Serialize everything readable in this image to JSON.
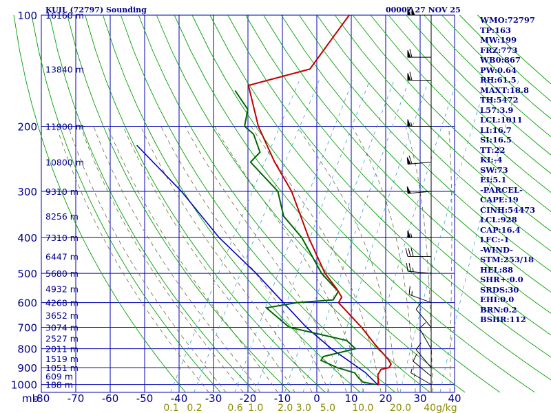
{
  "header": {
    "station": "KUIL (72797) Sounding",
    "time": "0000Z 27 NOV 25"
  },
  "indices": [
    "WMO:72797",
    "TP:163",
    "MW:199",
    "FRZ:773",
    "WB0:867",
    "PW:0.64",
    "RH:61.5",
    "MAXT:18.8",
    "TH:5472",
    "L57:3.9",
    "LCL:1011",
    "LI:16.7",
    "SI:16.5",
    "TT:22",
    "KI:-4",
    "SW:73",
    "EI:5.1",
    "-PARCEL-",
    "CAPE:19",
    "CINH:54473",
    "LCL:928",
    "CAP:16.4",
    "LFC:-1",
    "-WIND-",
    "STM:253/18",
    "HEL:88",
    "SHR+:0.0",
    "SRDS:30",
    "EHI:0.0",
    "BRN:0.2",
    "BSHR:112"
  ],
  "colors": {
    "grid": "#0000b0",
    "dry_adiabat": "#00a000",
    "moist_adiabat": "#6b6b3a",
    "mixing_ratio": "#3a9fd0",
    "temperature": "#c00000",
    "dewpoint": "#006400",
    "parcel": "#0000c0",
    "text": "#00008b",
    "mixing_label": "#8b8b00"
  },
  "chart_data": {
    "type": "skew-t",
    "pressure_label": "mb",
    "pressure_levels": [
      100,
      200,
      300,
      400,
      500,
      600,
      700,
      800,
      900,
      1000
    ],
    "temperature_ticks": [
      -80,
      -70,
      -60,
      -50,
      -40,
      -30,
      -20,
      -10,
      0,
      10,
      20,
      30,
      40
    ],
    "height_labels": [
      {
        "p": 100,
        "h": "16160 m"
      },
      {
        "p": 140,
        "h": "13840 m"
      },
      {
        "p": 200,
        "h": "11900 m"
      },
      {
        "p": 250,
        "h": "10800 m"
      },
      {
        "p": 300,
        "h": "9310 m"
      },
      {
        "p": 350,
        "h": "8256 m"
      },
      {
        "p": 400,
        "h": "7310 m"
      },
      {
        "p": 450,
        "h": "6447 m"
      },
      {
        "p": 500,
        "h": "5680 m"
      },
      {
        "p": 550,
        "h": "4932 m"
      },
      {
        "p": 600,
        "h": "4268 m"
      },
      {
        "p": 650,
        "h": "3652 m"
      },
      {
        "p": 700,
        "h": "3074 m"
      },
      {
        "p": 750,
        "h": "2527 m"
      },
      {
        "p": 800,
        "h": "2011 m"
      },
      {
        "p": 850,
        "h": "1519 m"
      },
      {
        "p": 900,
        "h": "1051 m"
      },
      {
        "p": 950,
        "h": "609 m"
      },
      {
        "p": 1000,
        "h": "188 m"
      }
    ],
    "mixing_ratio_labels": [
      "0.1",
      "0.2",
      "0.6",
      "1.0",
      "2.0",
      "3.0",
      "5.0",
      "10.0",
      "20.0",
      "40g/kg"
    ],
    "temperature_profile": [
      {
        "p": 100,
        "t": -55
      },
      {
        "p": 140,
        "t": -57
      },
      {
        "p": 155,
        "t": -72
      },
      {
        "p": 200,
        "t": -62
      },
      {
        "p": 250,
        "t": -51
      },
      {
        "p": 300,
        "t": -41
      },
      {
        "p": 400,
        "t": -28
      },
      {
        "p": 500,
        "t": -17
      },
      {
        "p": 550,
        "t": -11
      },
      {
        "p": 580,
        "t": -8
      },
      {
        "p": 600,
        "t": -8
      },
      {
        "p": 700,
        "t": 3
      },
      {
        "p": 780,
        "t": 10
      },
      {
        "p": 850,
        "t": 16
      },
      {
        "p": 880,
        "t": 18
      },
      {
        "p": 900,
        "t": 18
      },
      {
        "p": 910,
        "t": 16
      },
      {
        "p": 940,
        "t": 16
      },
      {
        "p": 1005,
        "t": 18
      }
    ],
    "dewpoint_profile": [
      {
        "p": 160,
        "t": -75
      },
      {
        "p": 180,
        "t": -68
      },
      {
        "p": 200,
        "t": -66
      },
      {
        "p": 210,
        "t": -62
      },
      {
        "p": 235,
        "t": -57
      },
      {
        "p": 250,
        "t": -58
      },
      {
        "p": 300,
        "t": -45
      },
      {
        "p": 350,
        "t": -39
      },
      {
        "p": 400,
        "t": -30
      },
      {
        "p": 500,
        "t": -18
      },
      {
        "p": 560,
        "t": -10
      },
      {
        "p": 590,
        "t": -10
      },
      {
        "p": 600,
        "t": -20
      },
      {
        "p": 620,
        "t": -28
      },
      {
        "p": 700,
        "t": -18
      },
      {
        "p": 760,
        "t": 1
      },
      {
        "p": 790,
        "t": 4
      },
      {
        "p": 800,
        "t": 5
      },
      {
        "p": 840,
        "t": -3
      },
      {
        "p": 860,
        "t": -3
      },
      {
        "p": 900,
        "t": 3
      },
      {
        "p": 930,
        "t": 9
      },
      {
        "p": 960,
        "t": 11
      },
      {
        "p": 985,
        "t": 13
      },
      {
        "p": 1000,
        "t": 17
      }
    ],
    "parcel_path": [
      {
        "p": 1005,
        "t": 18
      },
      {
        "p": 928,
        "t": 12
      },
      {
        "p": 800,
        "t": -2
      },
      {
        "p": 700,
        "t": -13
      },
      {
        "p": 600,
        "t": -24
      },
      {
        "p": 500,
        "t": -37
      },
      {
        "p": 400,
        "t": -54
      },
      {
        "p": 300,
        "t": -73
      },
      {
        "p": 225,
        "t": -94
      }
    ],
    "wind_barbs": [
      {
        "p": 100,
        "dir": 270,
        "spd": 100
      },
      {
        "p": 130,
        "dir": 270,
        "spd": 60
      },
      {
        "p": 150,
        "dir": 270,
        "spd": 60
      },
      {
        "p": 200,
        "dir": 270,
        "spd": 55
      },
      {
        "p": 250,
        "dir": 265,
        "spd": 60
      },
      {
        "p": 300,
        "dir": 265,
        "spd": 50
      },
      {
        "p": 400,
        "dir": 270,
        "spd": 55
      },
      {
        "p": 450,
        "dir": 270,
        "spd": 30
      },
      {
        "p": 500,
        "dir": 275,
        "spd": 25
      },
      {
        "p": 600,
        "dir": 290,
        "spd": 15
      },
      {
        "p": 700,
        "dir": 320,
        "spd": 10
      },
      {
        "p": 800,
        "dir": 330,
        "spd": 10
      },
      {
        "p": 900,
        "dir": 320,
        "spd": 10
      },
      {
        "p": 950,
        "dir": 310,
        "spd": 10
      },
      {
        "p": 1000,
        "dir": 300,
        "spd": 5
      }
    ]
  }
}
